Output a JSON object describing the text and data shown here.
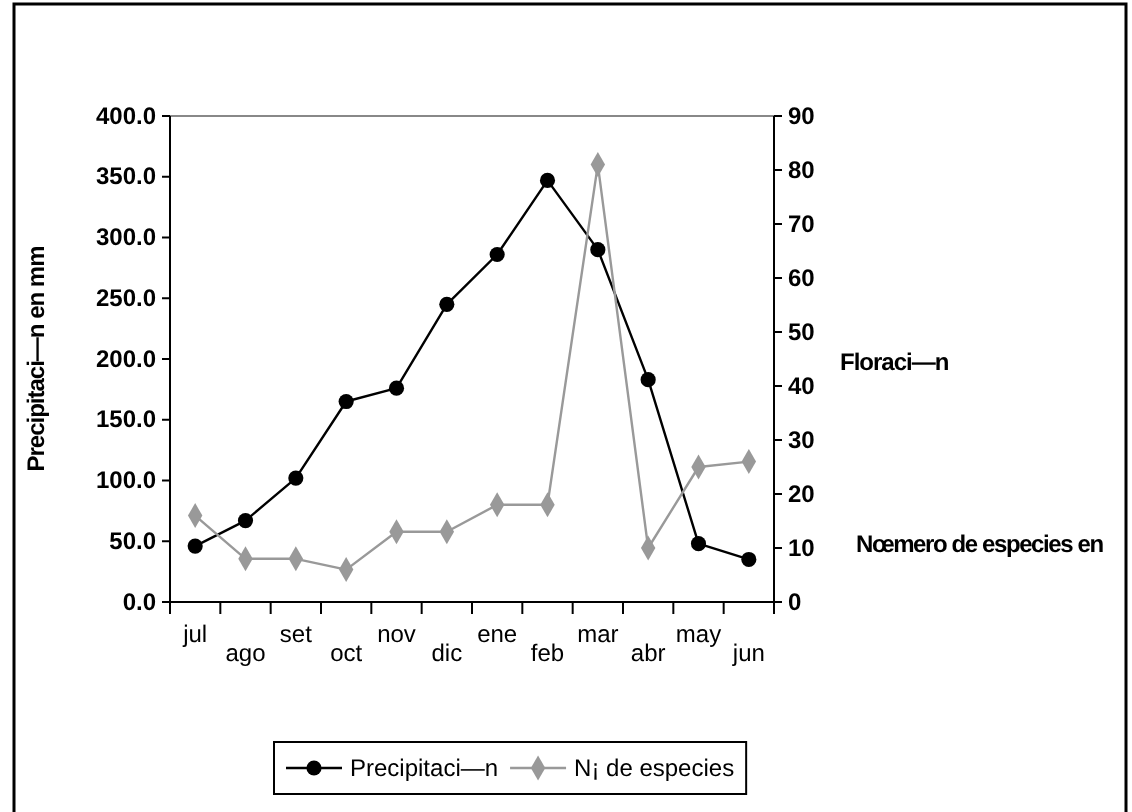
{
  "chart_data": {
    "type": "line",
    "categories": [
      "jul",
      "ago",
      "set",
      "oct",
      "nov",
      "dic",
      "ene",
      "feb",
      "mar",
      "abr",
      "may",
      "jun"
    ],
    "series": [
      {
        "name": "Precipitaci—n",
        "color": "#000000",
        "marker": "circle",
        "values": [
          46,
          67,
          102,
          165,
          176,
          245,
          286,
          347,
          290,
          183,
          48,
          35
        ]
      },
      {
        "name": "N¡ de especies",
        "color": "#999999",
        "marker": "diamond",
        "axis": "y2",
        "values": [
          16,
          8,
          8,
          6,
          13,
          13,
          18,
          18,
          81,
          10,
          25,
          26
        ]
      }
    ],
    "ylabel": "Precipitaci—n en mm",
    "y2label": "Floraci—n",
    "annotations": [
      "Nœmero de especies en"
    ],
    "ylim": [
      0,
      400
    ],
    "yticks": [
      {
        "value": 0,
        "label": "0.0"
      },
      {
        "value": 50,
        "label": "50.0"
      },
      {
        "value": 100,
        "label": "100.0"
      },
      {
        "value": 150,
        "label": "150.0"
      },
      {
        "value": 200,
        "label": "200.0"
      },
      {
        "value": 250,
        "label": "250.0"
      },
      {
        "value": 300,
        "label": "300.0"
      },
      {
        "value": 350,
        "label": "350.0"
      },
      {
        "value": 400,
        "label": "400.0"
      }
    ],
    "y2lim": [
      0,
      90
    ],
    "y2ticks": [
      0,
      10,
      20,
      30,
      40,
      50,
      60,
      70,
      80,
      90
    ],
    "legend": "bottom",
    "grid": false
  }
}
